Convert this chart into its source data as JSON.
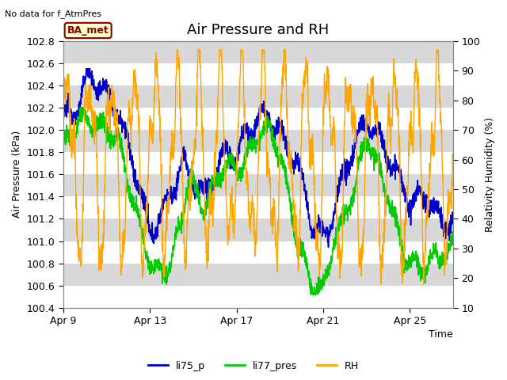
{
  "title": "Air Pressure and RH",
  "subtitle": "No data for f_AtmPres",
  "xlabel": "Time",
  "ylabel_left": "Air Pressure (kPa)",
  "ylabel_right": "Relativity Humidity (%)",
  "ylim_left": [
    100.4,
    102.8
  ],
  "ylim_right": [
    10,
    100
  ],
  "yticks_left": [
    100.4,
    100.6,
    100.8,
    101.0,
    101.2,
    101.4,
    101.6,
    101.8,
    102.0,
    102.2,
    102.4,
    102.6,
    102.8
  ],
  "yticks_right": [
    10,
    20,
    30,
    40,
    50,
    60,
    70,
    80,
    90,
    100
  ],
  "xtick_labels": [
    "Apr 9",
    "Apr 13",
    "Apr 17",
    "Apr 21",
    "Apr 25"
  ],
  "xtick_positions": [
    0,
    4,
    8,
    12,
    16
  ],
  "color_li75": "#0000cc",
  "color_li77": "#00cc00",
  "color_rh": "#ffa500",
  "legend_label_1": "li75_p",
  "legend_label_2": "li77_pres",
  "legend_label_3": "RH",
  "box_label": "BA_met",
  "box_facecolor": "#ffffcc",
  "box_edgecolor": "#8B0000",
  "box_textcolor": "#8B0000",
  "plot_bg_color": "#e8e8e8",
  "band_color_light": "#ebebeb",
  "band_color_dark": "#d8d8d8",
  "grid_color": "#ffffff",
  "title_fontsize": 13,
  "label_fontsize": 9,
  "tick_fontsize": 9,
  "figwidth": 6.4,
  "figheight": 4.8,
  "dpi": 100
}
